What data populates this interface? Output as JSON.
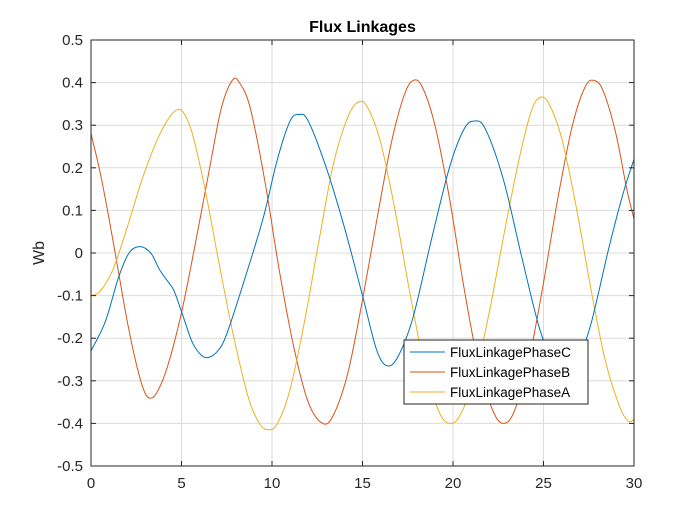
{
  "chart_data": {
    "type": "line",
    "title": "Flux Linkages",
    "xlabel": "",
    "ylabel": "Wb",
    "xlim": [
      0,
      30
    ],
    "ylim": [
      -0.5,
      0.5
    ],
    "xticks": [
      0,
      5,
      10,
      15,
      20,
      25,
      30
    ],
    "yticks": [
      -0.5,
      -0.4,
      -0.3,
      -0.2,
      -0.1,
      0,
      0.1,
      0.2,
      0.3,
      0.4,
      0.5
    ],
    "grid": true,
    "legend_position": "lower-right",
    "series": [
      {
        "name": "FluxLinkagePhaseC",
        "color": "#0072BD",
        "points": [
          [
            0,
            -0.23
          ],
          [
            0.8,
            -0.16
          ],
          [
            1.5,
            -0.06
          ],
          [
            2.1,
            0.0
          ],
          [
            2.7,
            0.015
          ],
          [
            3.3,
            0.0
          ],
          [
            3.8,
            -0.04
          ],
          [
            4.3,
            -0.07
          ],
          [
            4.6,
            -0.09
          ],
          [
            5.1,
            -0.15
          ],
          [
            5.6,
            -0.21
          ],
          [
            6.1,
            -0.24
          ],
          [
            6.5,
            -0.245
          ],
          [
            7.0,
            -0.23
          ],
          [
            7.5,
            -0.19
          ],
          [
            8.5,
            -0.06
          ],
          [
            9.5,
            0.08
          ],
          [
            10.3,
            0.22
          ],
          [
            11.0,
            0.31
          ],
          [
            11.5,
            0.325
          ],
          [
            12.0,
            0.31
          ],
          [
            13.0,
            0.2
          ],
          [
            14.0,
            0.06
          ],
          [
            15.0,
            -0.1
          ],
          [
            15.8,
            -0.23
          ],
          [
            16.4,
            -0.265
          ],
          [
            17.0,
            -0.24
          ],
          [
            17.8,
            -0.15
          ],
          [
            18.8,
            0.03
          ],
          [
            19.8,
            0.2
          ],
          [
            20.6,
            0.29
          ],
          [
            21.2,
            0.31
          ],
          [
            21.8,
            0.29
          ],
          [
            22.8,
            0.17
          ],
          [
            23.8,
            -0.01
          ],
          [
            24.8,
            -0.18
          ],
          [
            25.6,
            -0.26
          ],
          [
            26.2,
            -0.28
          ],
          [
            26.8,
            -0.26
          ],
          [
            27.6,
            -0.17
          ],
          [
            28.6,
            0.01
          ],
          [
            29.4,
            0.14
          ],
          [
            30.0,
            0.22
          ]
        ]
      },
      {
        "name": "FluxLinkagePhaseB",
        "color": "#D95319",
        "points": [
          [
            0,
            0.28
          ],
          [
            0.5,
            0.19
          ],
          [
            1.0,
            0.08
          ],
          [
            1.5,
            -0.04
          ],
          [
            2.0,
            -0.16
          ],
          [
            2.5,
            -0.26
          ],
          [
            2.9,
            -0.32
          ],
          [
            3.2,
            -0.34
          ],
          [
            3.6,
            -0.33
          ],
          [
            4.2,
            -0.27
          ],
          [
            5.0,
            -0.14
          ],
          [
            5.8,
            0.03
          ],
          [
            6.6,
            0.21
          ],
          [
            7.2,
            0.34
          ],
          [
            7.8,
            0.405
          ],
          [
            8.2,
            0.4
          ],
          [
            8.8,
            0.34
          ],
          [
            9.6,
            0.17
          ],
          [
            10.4,
            -0.04
          ],
          [
            11.2,
            -0.22
          ],
          [
            12.0,
            -0.35
          ],
          [
            12.8,
            -0.4
          ],
          [
            13.4,
            -0.38
          ],
          [
            14.2,
            -0.28
          ],
          [
            15.0,
            -0.11
          ],
          [
            15.8,
            0.08
          ],
          [
            16.6,
            0.26
          ],
          [
            17.3,
            0.37
          ],
          [
            17.8,
            0.405
          ],
          [
            18.3,
            0.39
          ],
          [
            19.0,
            0.3
          ],
          [
            19.8,
            0.13
          ],
          [
            20.6,
            -0.08
          ],
          [
            21.4,
            -0.26
          ],
          [
            22.2,
            -0.37
          ],
          [
            22.8,
            -0.4
          ],
          [
            23.4,
            -0.37
          ],
          [
            24.2,
            -0.25
          ],
          [
            25.0,
            -0.07
          ],
          [
            25.8,
            0.13
          ],
          [
            26.6,
            0.3
          ],
          [
            27.3,
            0.39
          ],
          [
            27.8,
            0.405
          ],
          [
            28.3,
            0.38
          ],
          [
            29.0,
            0.28
          ],
          [
            29.6,
            0.15
          ],
          [
            30.0,
            0.08
          ]
        ]
      },
      {
        "name": "FluxLinkagePhaseA",
        "color": "#EDB120",
        "points": [
          [
            0,
            -0.1
          ],
          [
            0.5,
            -0.09
          ],
          [
            1.2,
            -0.04
          ],
          [
            2.0,
            0.06
          ],
          [
            2.8,
            0.17
          ],
          [
            3.6,
            0.26
          ],
          [
            4.2,
            0.31
          ],
          [
            4.7,
            0.335
          ],
          [
            5.1,
            0.33
          ],
          [
            5.6,
            0.28
          ],
          [
            6.3,
            0.15
          ],
          [
            7.1,
            -0.03
          ],
          [
            7.9,
            -0.2
          ],
          [
            8.7,
            -0.34
          ],
          [
            9.3,
            -0.4
          ],
          [
            9.8,
            -0.415
          ],
          [
            10.3,
            -0.4
          ],
          [
            11.0,
            -0.32
          ],
          [
            11.8,
            -0.16
          ],
          [
            12.6,
            0.03
          ],
          [
            13.4,
            0.21
          ],
          [
            14.2,
            0.32
          ],
          [
            14.8,
            0.355
          ],
          [
            15.3,
            0.34
          ],
          [
            16.0,
            0.26
          ],
          [
            16.8,
            0.1
          ],
          [
            17.6,
            -0.09
          ],
          [
            18.4,
            -0.26
          ],
          [
            19.2,
            -0.37
          ],
          [
            19.8,
            -0.4
          ],
          [
            20.4,
            -0.38
          ],
          [
            21.2,
            -0.29
          ],
          [
            22.0,
            -0.14
          ],
          [
            22.8,
            0.04
          ],
          [
            23.6,
            0.21
          ],
          [
            24.3,
            0.33
          ],
          [
            24.8,
            0.365
          ],
          [
            25.3,
            0.35
          ],
          [
            26.0,
            0.27
          ],
          [
            26.8,
            0.11
          ],
          [
            27.6,
            -0.08
          ],
          [
            28.4,
            -0.25
          ],
          [
            29.2,
            -0.36
          ],
          [
            29.7,
            -0.395
          ],
          [
            30.0,
            -0.39
          ]
        ]
      }
    ]
  }
}
